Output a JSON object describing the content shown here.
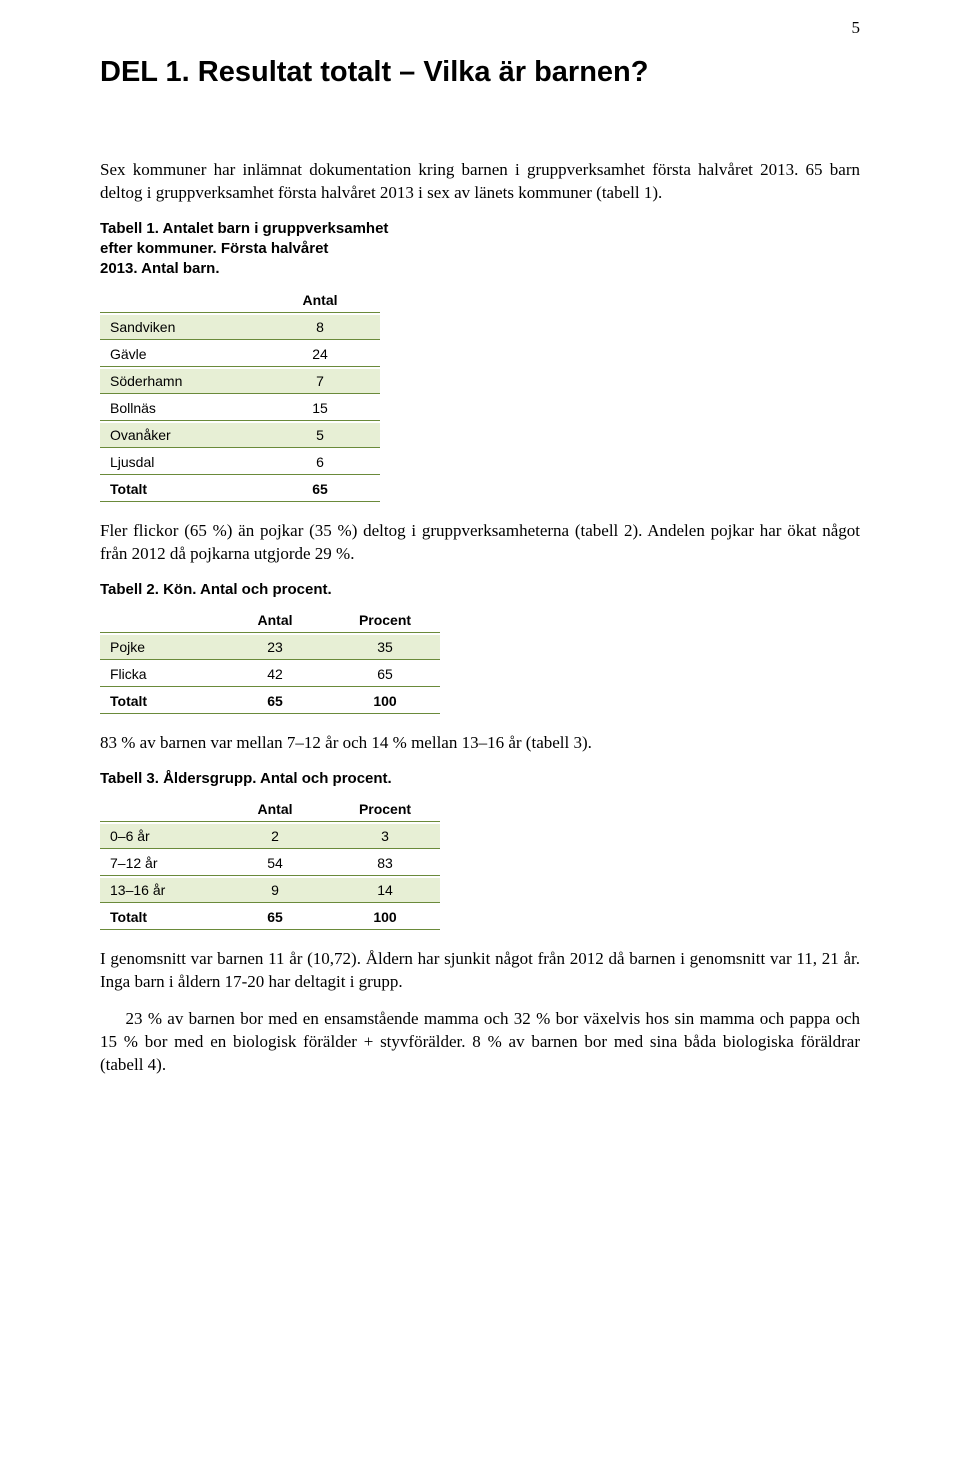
{
  "page_number": "5",
  "title": "DEL 1. Resultat totalt – Vilka är barnen?",
  "para_intro": "Sex kommuner har inlämnat dokumentation kring barnen i gruppverksamhet första halvåret 2013. 65 barn deltog i gruppverksamhet första halvåret 2013 i sex av länets kommuner (tabell 1).",
  "table1": {
    "caption_l1": "Tabell 1. Antalet barn i gruppverksamhet",
    "caption_l2": "efter kommuner. Första halvåret",
    "caption_l3": "2013. Antal barn.",
    "col_width_label": 160,
    "col_width_num": 120,
    "header_num": "Antal",
    "rows": [
      {
        "label": "Sandviken",
        "val": "8",
        "stripe": true
      },
      {
        "label": "Gävle",
        "val": "24",
        "stripe": false
      },
      {
        "label": "Söderhamn",
        "val": "7",
        "stripe": true
      },
      {
        "label": "Bollnäs",
        "val": "15",
        "stripe": false
      },
      {
        "label": "Ovanåker",
        "val": "5",
        "stripe": true
      },
      {
        "label": "Ljusdal",
        "val": "6",
        "stripe": false
      }
    ],
    "total_label": "Totalt",
    "total_val": "65"
  },
  "para_after_t1": "Fler flickor (65 %) än pojkar (35 %) deltog i gruppverksamheterna (tabell 2). Andelen pojkar har ökat något från 2012 då pojkarna utgjorde 29 %.",
  "table2": {
    "caption": "Tabell 2. Kön. Antal och procent.",
    "col_width_label": 120,
    "col_width_num": 110,
    "header_num1": "Antal",
    "header_num2": "Procent",
    "rows": [
      {
        "label": "Pojke",
        "v1": "23",
        "v2": "35",
        "stripe": true
      },
      {
        "label": "Flicka",
        "v1": "42",
        "v2": "65",
        "stripe": false
      }
    ],
    "total_label": "Totalt",
    "total_v1": "65",
    "total_v2": "100"
  },
  "para_after_t2": "83 % av barnen var mellan 7–12 år och 14 % mellan 13–16 år (tabell 3).",
  "table3": {
    "caption": "Tabell 3. Åldersgrupp. Antal och procent.",
    "col_width_label": 120,
    "col_width_num": 110,
    "header_num1": "Antal",
    "header_num2": "Procent",
    "rows": [
      {
        "label": "0–6 år",
        "v1": "2",
        "v2": "3",
        "stripe": true
      },
      {
        "label": "7–12 år",
        "v1": "54",
        "v2": "83",
        "stripe": false
      },
      {
        "label": "13–16 år",
        "v1": "9",
        "v2": "14",
        "stripe": true
      }
    ],
    "total_label": "Totalt",
    "total_v1": "65",
    "total_v2": "100"
  },
  "para_after_t3_a": "I genomsnitt var barnen 11 år (10,72). Åldern har sjunkit något från 2012 då barnen i genomsnitt var 11, 21 år. Inga barn i åldern 17-20 har deltagit i grupp.",
  "para_after_t3_b": "23 % av barnen bor med en ensamstående mamma och 32 % bor växelvis hos sin mamma och pappa och 15 % bor med en biologisk förälder + styvförälder. 8 % av barnen bor med sina båda biologiska föräldrar (tabell 4).",
  "colors": {
    "stripe_bg": "#e7efd5",
    "rule": "#6a8a3a",
    "text": "#000000",
    "page_bg": "#ffffff"
  },
  "fonts": {
    "heading_family": "Arial",
    "body_family": "Times New Roman",
    "title_size_pt": 22,
    "body_size_pt": 13,
    "table_size_pt": 11
  }
}
